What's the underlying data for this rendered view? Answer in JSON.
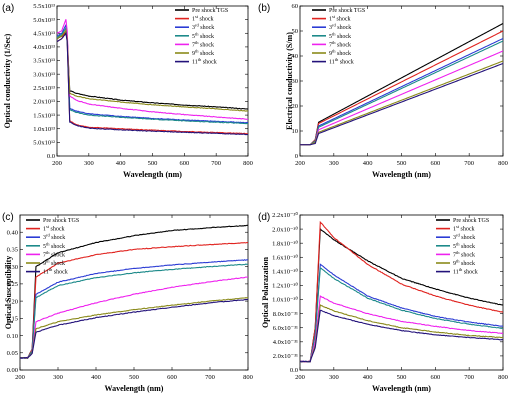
{
  "series_styles": [
    {
      "name": "Pre shock TGS",
      "sup": "",
      "color": "#000000"
    },
    {
      "name": "1",
      "sup": "st",
      "suffix": " shock",
      "color": "#e0231f"
    },
    {
      "name": "3",
      "sup": "rd",
      "suffix": " shock",
      "color": "#2b3bd4"
    },
    {
      "name": "5",
      "sup": "th",
      "suffix": " shock",
      "color": "#1d8a8a"
    },
    {
      "name": "7",
      "sup": "th",
      "suffix": " shock",
      "color": "#ee22ee"
    },
    {
      "name": "9",
      "sup": "th",
      "suffix": " shock",
      "color": "#8a8a1a"
    },
    {
      "name": "11",
      "sup": "th",
      "suffix": " shock",
      "color": "#23127a"
    }
  ],
  "chart_data": [
    {
      "panel_label": "(a)",
      "type": "line",
      "xlabel": "Wavelength (nm)",
      "ylabel": "Optical conductivity (1/Sec)",
      "xlim": [
        200,
        800
      ],
      "ylim": [
        0,
        55000000000000.0
      ],
      "xticks": [
        200,
        300,
        400,
        500,
        600,
        700,
        800
      ],
      "yticks": [
        0,
        5000000000000.0,
        10000000000000.0,
        15000000000000.0,
        20000000000000.0,
        25000000000000.0,
        30000000000000.0,
        35000000000000.0,
        40000000000000.0,
        45000000000000.0,
        50000000000000.0,
        55000000000000.0
      ],
      "ytick_labels": [
        "0.0",
        "5.0x10¹²",
        "1.0x10¹³",
        "1.5x10¹³",
        "2.0x10¹³",
        "2.5x10¹³",
        "3.0x10¹³",
        "3.5x10¹³",
        "4.0x10¹³",
        "4.5x10¹³",
        "5.0x10¹³",
        "5.5x10¹³"
      ],
      "legend_position": "top-right",
      "shape": "decay",
      "series": [
        {
          "x": [
            200,
            215,
            228,
            232,
            240,
            260,
            300,
            400,
            500,
            600,
            700,
            800
          ],
          "values": [
            43000000000000.0,
            44000000000000.0,
            45000000000000.0,
            43000000000000.0,
            24000000000000.0,
            23000000000000.0,
            22000000000000.0,
            20500000000000.0,
            19500000000000.0,
            18700000000000.0,
            18000000000000.0,
            17200000000000.0
          ]
        },
        {
          "x": [
            200,
            215,
            228,
            232,
            240,
            260,
            300,
            400,
            500,
            600,
            700,
            800
          ],
          "values": [
            42000000000000.0,
            43000000000000.0,
            46000000000000.0,
            42000000000000.0,
            13000000000000.0,
            11500000000000.0,
            10500000000000.0,
            10000000000000.0,
            9500000000000.0,
            9000000000000.0,
            8600000000000.0,
            8200000000000.0
          ]
        },
        {
          "x": [
            200,
            215,
            228,
            232,
            240,
            260,
            300,
            400,
            500,
            600,
            700,
            800
          ],
          "values": [
            44000000000000.0,
            45000000000000.0,
            48000000000000.0,
            44000000000000.0,
            17500000000000.0,
            16500000000000.0,
            15500000000000.0,
            14500000000000.0,
            13800000000000.0,
            13200000000000.0,
            12700000000000.0,
            12200000000000.0
          ]
        },
        {
          "x": [
            200,
            215,
            228,
            232,
            240,
            260,
            300,
            400,
            500,
            600,
            700,
            800
          ],
          "values": [
            43500000000000.0,
            44500000000000.0,
            47000000000000.0,
            43000000000000.0,
            17000000000000.0,
            16000000000000.0,
            15000000000000.0,
            14200000000000.0,
            13500000000000.0,
            12900000000000.0,
            12400000000000.0,
            11900000000000.0
          ]
        },
        {
          "x": [
            200,
            215,
            228,
            232,
            240,
            260,
            300,
            400,
            500,
            600,
            700,
            800
          ],
          "values": [
            45000000000000.0,
            46000000000000.0,
            50000000000000.0,
            46000000000000.0,
            22000000000000.0,
            20500000000000.0,
            19000000000000.0,
            17500000000000.0,
            16200000000000.0,
            15200000000000.0,
            14300000000000.0,
            13500000000000.0
          ]
        },
        {
          "x": [
            200,
            215,
            228,
            232,
            240,
            260,
            300,
            400,
            500,
            600,
            700,
            800
          ],
          "values": [
            43000000000000.0,
            44000000000000.0,
            46000000000000.0,
            43000000000000.0,
            23000000000000.0,
            22000000000000.0,
            21000000000000.0,
            19800000000000.0,
            18800000000000.0,
            18000000000000.0,
            17300000000000.0,
            16500000000000.0
          ]
        },
        {
          "x": [
            200,
            215,
            228,
            232,
            240,
            260,
            300,
            400,
            500,
            600,
            700,
            800
          ],
          "values": [
            42000000000000.0,
            43000000000000.0,
            45000000000000.0,
            42000000000000.0,
            12500000000000.0,
            11200000000000.0,
            10200000000000.0,
            9600000000000.0,
            9100000000000.0,
            8700000000000.0,
            8300000000000.0,
            7900000000000.0
          ]
        }
      ]
    },
    {
      "panel_label": "(b)",
      "type": "line",
      "xlabel": "Wavelength (nm)",
      "ylabel": "Electrical conductivity (S/m)",
      "xlim": [
        200,
        800
      ],
      "ylim": [
        0,
        60
      ],
      "xticks": [
        200,
        300,
        400,
        500,
        600,
        700,
        800
      ],
      "yticks": [
        0,
        10,
        20,
        30,
        40,
        50,
        60
      ],
      "ytick_labels": [
        "0",
        "10",
        "20",
        "30",
        "40",
        "50",
        "60"
      ],
      "legend_position": "top-left",
      "shape": "linear",
      "series": [
        {
          "x": [
            200,
            230,
            245,
            255,
            800
          ],
          "values": [
            4.5,
            4.5,
            6.5,
            13.5,
            53
          ]
        },
        {
          "x": [
            200,
            230,
            245,
            255,
            800
          ],
          "values": [
            4.5,
            4.5,
            6.5,
            13.0,
            50
          ]
        },
        {
          "x": [
            200,
            230,
            245,
            255,
            800
          ],
          "values": [
            4.5,
            4.5,
            6.0,
            12.0,
            47
          ]
        },
        {
          "x": [
            200,
            230,
            245,
            255,
            800
          ],
          "values": [
            4.5,
            4.5,
            6.0,
            11.5,
            46
          ]
        },
        {
          "x": [
            200,
            230,
            245,
            255,
            800
          ],
          "values": [
            4.5,
            4.5,
            5.5,
            10.5,
            42
          ]
        },
        {
          "x": [
            200,
            230,
            245,
            255,
            800
          ],
          "values": [
            4.5,
            4.5,
            5.5,
            9.5,
            38
          ]
        },
        {
          "x": [
            200,
            230,
            245,
            255,
            800
          ],
          "values": [
            4.5,
            4.5,
            5.0,
            9.0,
            37
          ]
        }
      ]
    },
    {
      "panel_label": "(c)",
      "type": "line",
      "xlabel": "Wavelength (nm)",
      "ylabel": "Optical Susceptibility",
      "xlim": [
        200,
        800
      ],
      "ylim": [
        0,
        0.45
      ],
      "xticks": [
        200,
        300,
        400,
        500,
        600,
        700,
        800
      ],
      "yticks": [
        0,
        0.05,
        0.1,
        0.15,
        0.2,
        0.25,
        0.3,
        0.35,
        0.4
      ],
      "ytick_labels": [
        "0.00",
        "0.05",
        "0.10",
        "0.15",
        "0.20",
        "0.25",
        "0.30",
        "0.35",
        "0.40"
      ],
      "legend_position": "top-left",
      "shape": "rise",
      "series": [
        {
          "x": [
            200,
            220,
            232,
            242,
            300,
            400,
            500,
            600,
            700,
            800
          ],
          "values": [
            0.035,
            0.035,
            0.06,
            0.3,
            0.34,
            0.37,
            0.39,
            0.405,
            0.413,
            0.42
          ]
        },
        {
          "x": [
            200,
            220,
            232,
            242,
            300,
            400,
            500,
            600,
            700,
            800
          ],
          "values": [
            0.035,
            0.035,
            0.06,
            0.27,
            0.31,
            0.335,
            0.35,
            0.358,
            0.364,
            0.37
          ]
        },
        {
          "x": [
            200,
            220,
            232,
            242,
            300,
            400,
            500,
            600,
            700,
            800
          ],
          "values": [
            0.035,
            0.035,
            0.055,
            0.22,
            0.255,
            0.28,
            0.295,
            0.305,
            0.313,
            0.32
          ]
        },
        {
          "x": [
            200,
            220,
            232,
            242,
            300,
            400,
            500,
            600,
            700,
            800
          ],
          "values": [
            0.035,
            0.035,
            0.055,
            0.21,
            0.245,
            0.268,
            0.282,
            0.292,
            0.3,
            0.307
          ]
        },
        {
          "x": [
            200,
            220,
            232,
            242,
            300,
            400,
            500,
            600,
            700,
            800
          ],
          "values": [
            0.035,
            0.035,
            0.05,
            0.14,
            0.165,
            0.195,
            0.22,
            0.24,
            0.256,
            0.27
          ]
        },
        {
          "x": [
            200,
            220,
            232,
            242,
            300,
            400,
            500,
            600,
            700,
            800
          ],
          "values": [
            0.035,
            0.035,
            0.05,
            0.12,
            0.14,
            0.16,
            0.175,
            0.188,
            0.2,
            0.21
          ]
        },
        {
          "x": [
            200,
            220,
            232,
            242,
            300,
            400,
            500,
            600,
            700,
            800
          ],
          "values": [
            0.035,
            0.035,
            0.048,
            0.11,
            0.13,
            0.152,
            0.168,
            0.182,
            0.195,
            0.205
          ]
        }
      ]
    },
    {
      "panel_label": "(d)",
      "type": "line",
      "xlabel": "Wavelength (nm)",
      "ylabel": "Optical Polarazation",
      "xlim": [
        200,
        800
      ],
      "ylim": [
        0,
        2.2e-30
      ],
      "xticks": [
        200,
        300,
        400,
        500,
        600,
        700,
        800
      ],
      "yticks": [
        0,
        2e-31,
        4e-31,
        6e-31,
        8e-31,
        1e-30,
        1.2e-30,
        1.4e-30,
        1.6e-30,
        1.8e-30,
        2e-30,
        2.2e-30
      ],
      "ytick_labels": [
        "0.0",
        "2.0x10⁻³¹",
        "4.0x10⁻³¹",
        "6.0x10⁻³¹",
        "8.0x10⁻³¹",
        "1.0x10⁻³⁰",
        "1.2x10⁻³⁰",
        "1.4x10⁻³⁰",
        "1.6x10⁻³⁰",
        "1.8x10⁻³⁰",
        "2.0x10⁻³⁰",
        "2.2x10⁻³⁰"
      ],
      "legend_position": "top-right",
      "shape": "peak",
      "series": [
        {
          "x": [
            200,
            230,
            245,
            260,
            300,
            400,
            500,
            600,
            700,
            800
          ],
          "values": [
            1.2e-31,
            1.2e-31,
            6e-31,
            2e-30,
            1.85e-30,
            1.55e-30,
            1.3e-30,
            1.15e-30,
            1.02e-30,
            9.2e-31
          ]
        },
        {
          "x": [
            200,
            230,
            245,
            260,
            300,
            400,
            500,
            600,
            700,
            800
          ],
          "values": [
            1.2e-31,
            1.2e-31,
            6e-31,
            2.1e-30,
            1.88e-30,
            1.5e-30,
            1.22e-30,
            1.05e-30,
            9.2e-31,
            8.2e-31
          ]
        },
        {
          "x": [
            200,
            230,
            245,
            260,
            300,
            400,
            500,
            600,
            700,
            800
          ],
          "values": [
            1.2e-31,
            1.2e-31,
            5e-31,
            1.5e-30,
            1.35e-30,
            1.05e-30,
            8.8e-31,
            7.6e-31,
            6.8e-31,
            6.2e-31
          ]
        },
        {
          "x": [
            200,
            230,
            245,
            260,
            300,
            400,
            500,
            600,
            700,
            800
          ],
          "values": [
            1.2e-31,
            1.2e-31,
            5e-31,
            1.45e-30,
            1.3e-30,
            1.02e-30,
            8.5e-31,
            7.3e-31,
            6.5e-31,
            5.9e-31
          ]
        },
        {
          "x": [
            200,
            230,
            245,
            260,
            300,
            400,
            500,
            600,
            700,
            800
          ],
          "values": [
            1.2e-31,
            1.2e-31,
            4e-31,
            1.05e-30,
            9.5e-31,
            8e-31,
            6.9e-31,
            6.2e-31,
            5.6e-31,
            5.2e-31
          ]
        },
        {
          "x": [
            200,
            230,
            245,
            260,
            300,
            400,
            500,
            600,
            700,
            800
          ],
          "values": [
            1.2e-31,
            1.2e-31,
            3.5e-31,
            9.2e-31,
            8.4e-31,
            7e-31,
            6e-31,
            5.4e-31,
            4.9e-31,
            4.6e-31
          ]
        },
        {
          "x": [
            200,
            230,
            245,
            260,
            300,
            400,
            500,
            600,
            700,
            800
          ],
          "values": [
            1.2e-31,
            1.2e-31,
            3.2e-31,
            8.5e-31,
            7.7e-31,
            6.5e-31,
            5.6e-31,
            5e-31,
            4.6e-31,
            4.3e-31
          ]
        }
      ]
    }
  ]
}
